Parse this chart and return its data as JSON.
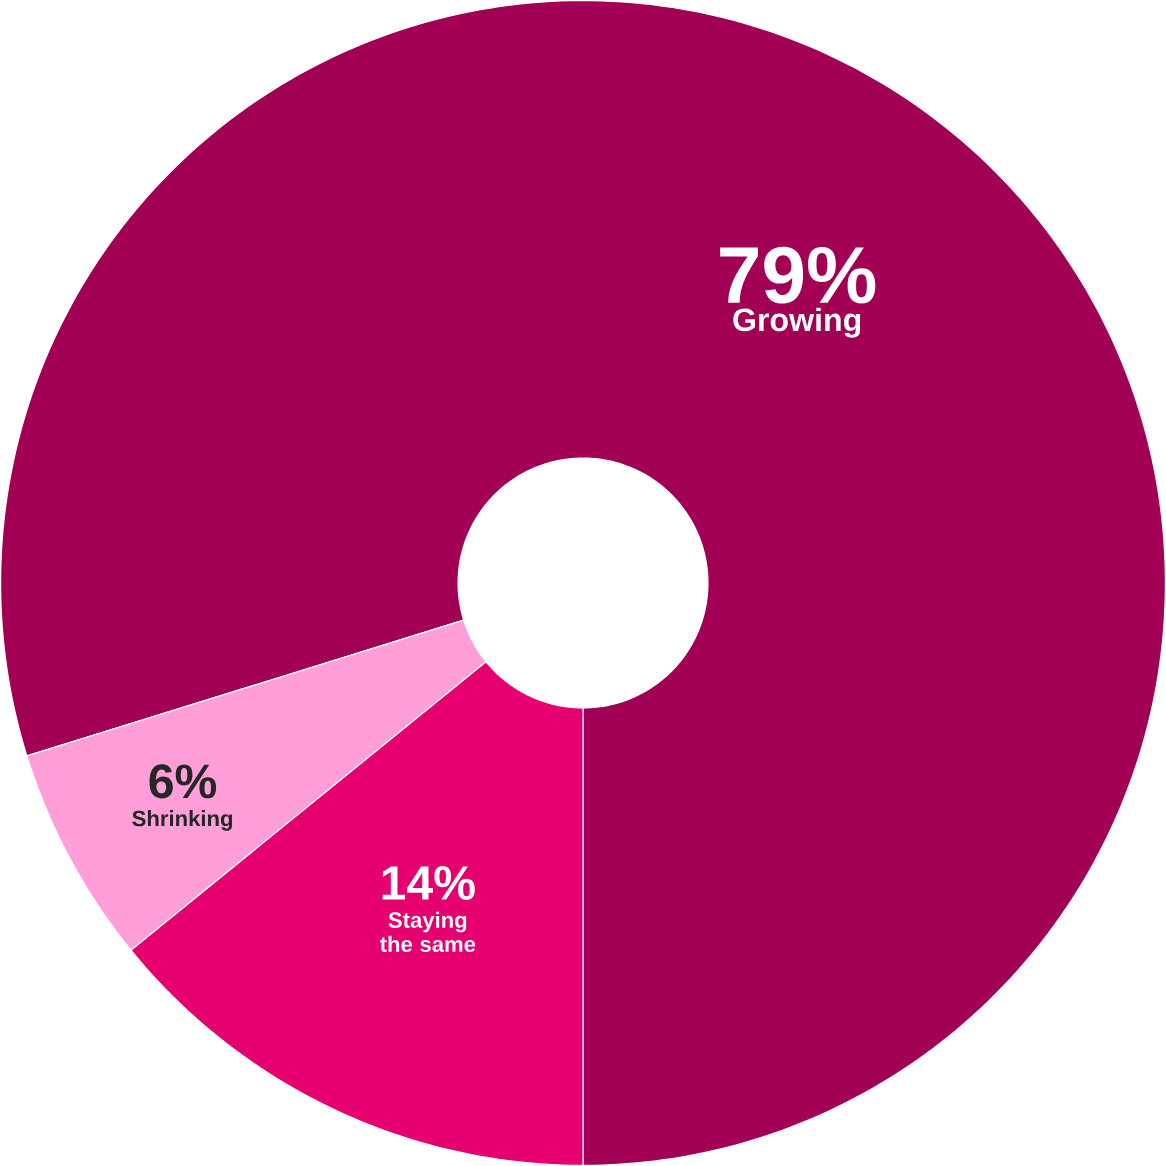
{
  "chart_data": {
    "type": "donut",
    "categories": [
      "Growing",
      "Shrinking",
      "Staying the same"
    ],
    "values": [
      79,
      6,
      14
    ],
    "value_labels": [
      "79%",
      "6%",
      "14%"
    ],
    "colors": [
      "#a10055",
      "#ff9ed8",
      "#e6006f"
    ]
  }
}
